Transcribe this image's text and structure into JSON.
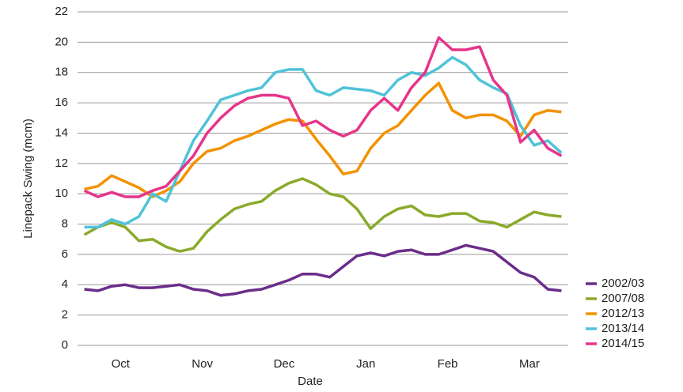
{
  "chart_data": {
    "type": "line",
    "x_label": "Date",
    "y_label": "Linepack Swing (mcm)",
    "categories": [
      null,
      null,
      null,
      "Oct",
      null,
      null,
      null,
      null,
      null,
      "Nov",
      null,
      null,
      null,
      null,
      null,
      "Dec",
      null,
      null,
      null,
      null,
      null,
      "Jan",
      null,
      null,
      null,
      null,
      null,
      "Feb",
      null,
      null,
      null,
      null,
      null,
      "Mar",
      null,
      null
    ],
    "series": [
      {
        "name": "2002/03",
        "color": "#6b2d8b",
        "values": [
          3.7,
          3.6,
          3.9,
          4.0,
          3.8,
          3.8,
          3.9,
          4.0,
          3.7,
          3.6,
          3.3,
          3.4,
          3.6,
          3.7,
          4.0,
          4.3,
          4.7,
          4.7,
          4.5,
          5.2,
          5.9,
          6.1,
          5.9,
          6.2,
          6.3,
          6.0,
          6.0,
          6.3,
          6.6,
          6.4,
          6.2,
          5.5,
          4.8,
          4.5,
          3.7,
          3.6
        ]
      },
      {
        "name": "2007/08",
        "color": "#8aaa2b",
        "values": [
          7.3,
          7.8,
          8.1,
          7.8,
          6.9,
          7.0,
          6.5,
          6.2,
          6.4,
          7.5,
          8.3,
          9.0,
          9.3,
          9.5,
          10.2,
          10.7,
          11.0,
          10.6,
          10.0,
          9.8,
          9.0,
          7.7,
          8.5,
          9.0,
          9.2,
          8.6,
          8.5,
          8.7,
          8.7,
          8.2,
          8.1,
          7.8,
          8.3,
          8.8,
          8.6,
          8.5
        ]
      },
      {
        "name": "2012/13",
        "color": "#f39200",
        "values": [
          10.3,
          10.5,
          11.2,
          10.8,
          10.4,
          9.8,
          10.2,
          10.8,
          12.0,
          12.8,
          13.0,
          13.5,
          13.8,
          14.2,
          14.6,
          14.9,
          14.8,
          13.6,
          12.5,
          11.3,
          11.5,
          13.0,
          14.0,
          14.5,
          15.5,
          16.5,
          17.3,
          15.5,
          15.0,
          15.2,
          15.2,
          14.8,
          13.8,
          15.2,
          15.5,
          15.4
        ]
      },
      {
        "name": "2013/14",
        "color": "#4fc3d9",
        "values": [
          7.8,
          7.8,
          8.3,
          8.0,
          8.5,
          10.0,
          9.5,
          11.5,
          13.5,
          14.8,
          16.2,
          16.5,
          16.8,
          17.0,
          18.0,
          18.2,
          18.2,
          16.8,
          16.5,
          17.0,
          16.9,
          16.8,
          16.5,
          17.5,
          18.0,
          17.8,
          18.3,
          19.0,
          18.5,
          17.5,
          17.0,
          16.6,
          14.5,
          13.2,
          13.5,
          12.7
        ]
      },
      {
        "name": "2014/15",
        "color": "#e6358a",
        "values": [
          10.2,
          9.8,
          10.1,
          9.8,
          9.8,
          10.2,
          10.5,
          11.5,
          12.5,
          14.0,
          15.0,
          15.8,
          16.3,
          16.5,
          16.5,
          16.3,
          14.5,
          14.8,
          14.2,
          13.8,
          14.2,
          15.5,
          16.3,
          15.5,
          17.0,
          18.0,
          20.3,
          19.5,
          19.5,
          19.7,
          17.5,
          16.5,
          13.4,
          14.2,
          13.0,
          12.5
        ]
      }
    ],
    "ylim": [
      0,
      22
    ],
    "yticks": [
      0,
      2,
      4,
      6,
      8,
      10,
      12,
      14,
      16,
      18,
      20,
      22
    ],
    "grid": true,
    "legend": "lower right"
  }
}
